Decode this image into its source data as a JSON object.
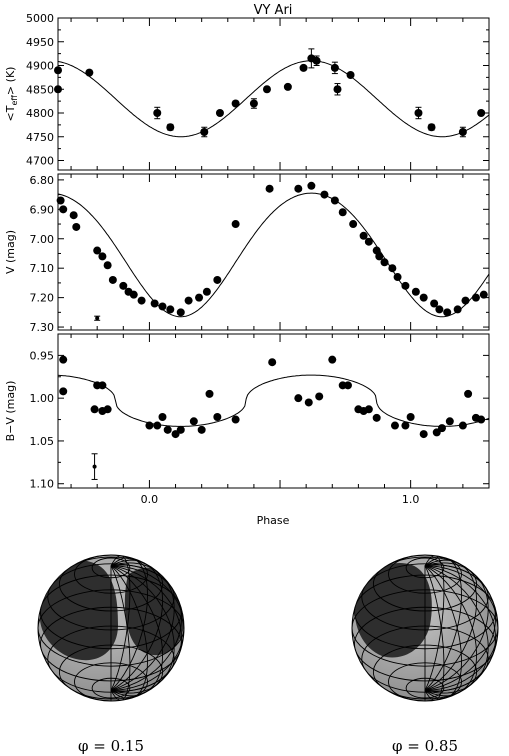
{
  "chart_data": [
    {
      "type": "scatter",
      "title": "VY Ari",
      "ylabel": "<T_eff> (K)",
      "xlim": [
        -0.35,
        1.3
      ],
      "ylim": [
        4680,
        5000
      ],
      "yticks": [
        4700,
        4750,
        4800,
        4850,
        4900,
        4950,
        5000
      ],
      "xticks": [
        0.0,
        1.0
      ],
      "series": [
        {
          "kind": "points",
          "x": [
            -0.35,
            -0.35,
            -0.23,
            0.03,
            0.08,
            0.21,
            0.27,
            0.33,
            0.4,
            0.45,
            0.53,
            0.59,
            0.62,
            0.64,
            0.71,
            0.72,
            0.77,
            1.03,
            1.08,
            1.2,
            1.27
          ],
          "y": [
            4890,
            4850,
            4885,
            4800,
            4770,
            4760,
            4800,
            4820,
            4820,
            4850,
            4855,
            4895,
            4915,
            4910,
            4895,
            4850,
            4880,
            4800,
            4770,
            4760,
            4800
          ],
          "err": [
            0,
            0,
            0,
            12,
            6,
            10,
            0,
            0,
            10,
            0,
            0,
            0,
            20,
            10,
            12,
            12,
            0,
            12,
            6,
            10,
            0
          ]
        },
        {
          "kind": "curve",
          "mean": 4830,
          "amp": 80,
          "phase0": 0.62
        }
      ]
    },
    {
      "type": "scatter",
      "ylabel": "V (mag)",
      "xlim": [
        -0.35,
        1.3
      ],
      "ylim": [
        6.78,
        7.31
      ],
      "inverted": true,
      "yticks": [
        6.8,
        6.9,
        7.0,
        7.1,
        7.2,
        7.3
      ],
      "ytick_labels": [
        "6.80",
        "6.90",
        "7.00",
        "7.10",
        "7.20",
        "7.30"
      ],
      "xticks": [
        0.0,
        1.0
      ],
      "series": [
        {
          "kind": "points",
          "x": [
            -0.34,
            -0.33,
            -0.29,
            -0.28,
            -0.2,
            -0.18,
            -0.16,
            -0.14,
            -0.1,
            -0.08,
            -0.06,
            -0.03,
            0.02,
            0.05,
            0.08,
            0.12,
            0.15,
            0.19,
            0.22,
            0.26,
            0.33,
            0.46,
            0.57,
            0.62,
            0.67,
            0.71,
            0.74,
            0.78,
            0.82,
            0.84,
            0.87,
            0.88,
            0.9,
            0.93,
            0.95,
            0.98,
            1.02,
            1.05,
            1.09,
            1.11,
            1.14,
            1.18,
            1.21,
            1.25,
            1.28
          ],
          "y": [
            6.87,
            6.9,
            6.92,
            6.96,
            7.04,
            7.06,
            7.09,
            7.14,
            7.16,
            7.18,
            7.19,
            7.21,
            7.22,
            7.23,
            7.24,
            7.25,
            7.21,
            7.2,
            7.18,
            7.14,
            6.95,
            6.83,
            6.83,
            6.82,
            6.85,
            6.87,
            6.91,
            6.95,
            6.99,
            7.01,
            7.04,
            7.06,
            7.08,
            7.1,
            7.13,
            7.16,
            7.18,
            7.2,
            7.22,
            7.24,
            7.25,
            7.24,
            7.21,
            7.2,
            7.19
          ]
        },
        {
          "kind": "curve",
          "mean": 7.04,
          "amp": 0.21,
          "phase0": 0.62,
          "second_amp": 0.015
        },
        {
          "kind": "errbar",
          "x": -0.2,
          "y": 7.27,
          "err": 0.007
        }
      ]
    },
    {
      "type": "scatter",
      "ylabel": "B−V (mag)",
      "xlabel": "Phase",
      "xlim": [
        -0.35,
        1.3
      ],
      "ylim": [
        0.925,
        1.105
      ],
      "inverted": true,
      "yticks": [
        0.95,
        1.0,
        1.05,
        1.1
      ],
      "ytick_labels": [
        "0.95",
        "1.00",
        "1.05",
        "1.10"
      ],
      "xticks": [
        0.0,
        1.0
      ],
      "xtick_labels": [
        "0.0",
        "1.0"
      ],
      "series": [
        {
          "kind": "points",
          "x": [
            -0.33,
            -0.33,
            -0.2,
            -0.18,
            -0.21,
            -0.18,
            -0.16,
            0.0,
            0.03,
            0.05,
            0.07,
            0.1,
            0.12,
            0.17,
            0.2,
            0.23,
            0.26,
            0.33,
            0.47,
            0.57,
            0.61,
            0.65,
            0.7,
            0.74,
            0.76,
            0.8,
            0.82,
            0.84,
            0.87,
            0.94,
            0.98,
            1.0,
            1.05,
            1.1,
            1.12,
            1.15,
            1.2,
            1.22,
            1.25,
            1.27
          ],
          "y": [
            0.955,
            0.992,
            0.985,
            0.985,
            1.013,
            1.015,
            1.013,
            1.032,
            1.032,
            1.022,
            1.037,
            1.042,
            1.037,
            1.027,
            1.037,
            0.995,
            1.022,
            1.025,
            0.958,
            1.0,
            1.005,
            0.998,
            0.955,
            0.985,
            0.985,
            1.013,
            1.015,
            1.013,
            1.023,
            1.032,
            1.032,
            1.022,
            1.042,
            1.04,
            1.035,
            1.027,
            1.032,
            0.995,
            1.023,
            1.025
          ]
        },
        {
          "kind": "curve",
          "mean": 1.003,
          "amp": 0.03,
          "phase0": 0.62
        },
        {
          "kind": "errbar",
          "x": -0.21,
          "y": 1.08,
          "err": 0.015
        }
      ]
    }
  ],
  "spheres": [
    {
      "label": "φ = 0.15",
      "phase": 0.15
    },
    {
      "label": "φ = 0.85",
      "phase": 0.85
    }
  ],
  "style": {
    "marker": "#000000",
    "sphere_light": "#a8a8a8",
    "sphere_dark": "#3c3c3c",
    "spot": "#2a2a2a"
  }
}
